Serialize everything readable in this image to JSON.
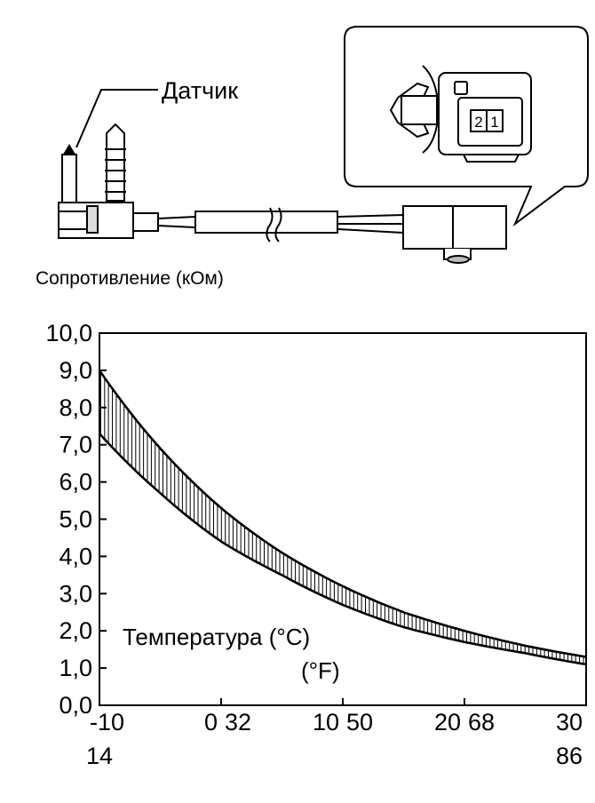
{
  "diagram": {
    "sensor_label": "Датчик",
    "connector_pins": [
      "2",
      "1"
    ]
  },
  "chart_data": {
    "type": "area",
    "ylabel": "Сопротивление (кОм)",
    "xlabel_c": "Температура (°C)",
    "xlabel_f": "(°F)",
    "ylim": [
      0,
      10
    ],
    "xlim": [
      -10,
      30
    ],
    "y_ticks": [
      "0,0",
      "1,0",
      "2,0",
      "3,0",
      "4,0",
      "5,0",
      "6,0",
      "7,0",
      "8,0",
      "9,0",
      "10,0"
    ],
    "x_ticks_c": [
      {
        "x": -10,
        "label": "-10"
      },
      {
        "x": 0,
        "label": "0"
      },
      {
        "x": 10,
        "label": "10"
      },
      {
        "x": 20,
        "label": "20"
      },
      {
        "x": 30,
        "label": "30"
      }
    ],
    "x_ticks_f": [
      {
        "x": -10,
        "label": "14"
      },
      {
        "x": 0,
        "label": "32"
      },
      {
        "x": 10,
        "label": "50"
      },
      {
        "x": 20,
        "label": "68"
      },
      {
        "x": 30,
        "label": "86"
      }
    ],
    "series": [
      {
        "x": [
          -10,
          -5,
          0,
          5,
          10,
          15,
          20,
          25,
          30
        ],
        "values": [
          9.0,
          6.9,
          5.3,
          4.1,
          3.2,
          2.5,
          2.0,
          1.6,
          1.3
        ]
      },
      {
        "x": [
          -10,
          -5,
          0,
          5,
          10,
          15,
          20,
          25,
          30
        ],
        "values": [
          7.3,
          5.7,
          4.4,
          3.5,
          2.7,
          2.1,
          1.7,
          1.4,
          1.1
        ]
      }
    ]
  }
}
